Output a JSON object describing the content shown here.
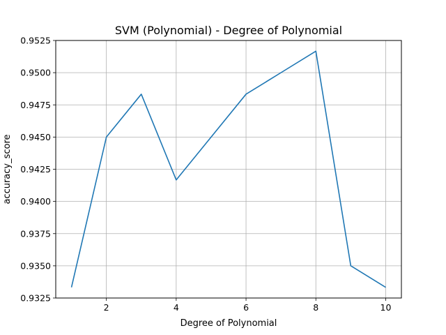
{
  "chart_data": {
    "type": "line",
    "title": "SVM (Polynomial) - Degree of Polynomial",
    "xlabel": "Degree of Polynomial",
    "ylabel": "accuracy_score",
    "xlim": [
      0.55,
      10.45
    ],
    "ylim": [
      0.9325,
      0.9525
    ],
    "xticks": [
      2,
      4,
      6,
      8,
      10
    ],
    "xtick_labels": [
      "2",
      "4",
      "6",
      "8",
      "10"
    ],
    "yticks": [
      0.9325,
      0.935,
      0.9375,
      0.94,
      0.9425,
      0.945,
      0.9475,
      0.95,
      0.9525
    ],
    "ytick_labels": [
      "0.9325",
      "0.9350",
      "0.9375",
      "0.9400",
      "0.9425",
      "0.9450",
      "0.9475",
      "0.9500",
      "0.9525"
    ],
    "grid": true,
    "series": [
      {
        "x": [
          1,
          2,
          3,
          4,
          5,
          6,
          7,
          8,
          9,
          10
        ],
        "y": [
          0.93333,
          0.945,
          0.94833,
          0.94167,
          0.945,
          0.94833,
          0.95,
          0.95167,
          0.935,
          0.93333
        ],
        "color": "#1f77b4"
      }
    ]
  }
}
